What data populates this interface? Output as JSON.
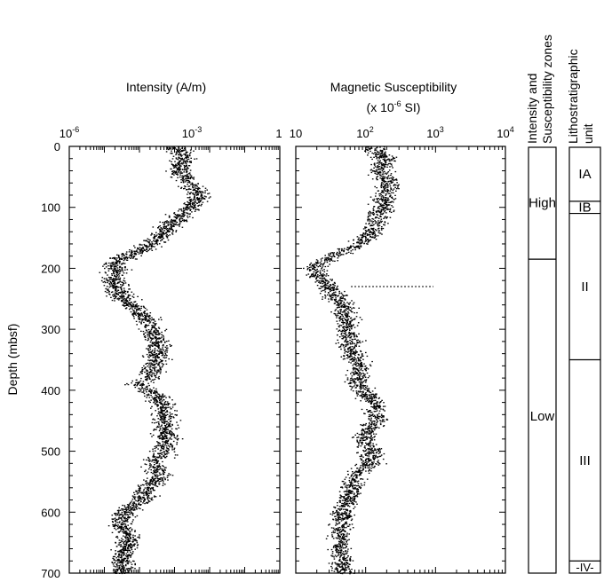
{
  "chart_data": [
    {
      "type": "scatter",
      "title": "Intensity (A/m)",
      "xscale": "log",
      "xlim": [
        1e-06,
        1
      ],
      "xticks": [
        {
          "base": "10",
          "exp": "-6"
        },
        {
          "base": "10",
          "exp": "-3"
        },
        {
          "base": "1",
          "exp": ""
        }
      ],
      "ylabel": "Depth (mbsf)",
      "ylim": [
        0,
        700
      ],
      "yticks": [
        "0",
        "100",
        "200",
        "300",
        "400",
        "500",
        "600",
        "700"
      ],
      "depth": [
        0,
        20,
        40,
        60,
        80,
        100,
        120,
        140,
        160,
        175,
        190,
        210,
        230,
        250,
        260,
        280,
        300,
        320,
        340,
        360,
        380,
        390,
        400,
        420,
        440,
        460,
        480,
        500,
        520,
        540,
        560,
        580,
        600,
        620,
        640,
        660,
        680,
        700
      ],
      "values": [
        0.0013,
        0.0016,
        0.0013,
        0.0025,
        0.005,
        0.0025,
        0.001,
        0.00045,
        0.00022,
        6e-05,
        2e-05,
        1.8e-05,
        2e-05,
        3.5e-05,
        6e-05,
        0.00015,
        0.00022,
        0.0003,
        0.0003,
        0.00025,
        0.00018,
        8e-05,
        0.0002,
        0.00045,
        0.0005,
        0.0005,
        0.00055,
        0.00045,
        0.00025,
        0.0004,
        0.00015,
        0.00012,
        3.5e-05,
        3e-05,
        5e-05,
        4e-05,
        3e-05,
        3e-05
      ]
    },
    {
      "type": "scatter",
      "title": "Magnetic Susceptibility",
      "subtitle": {
        "prefix": "(x 10",
        "exp": "-6",
        "suffix": " SI)"
      },
      "xscale": "log",
      "xlim": [
        10,
        10000
      ],
      "xticks": [
        {
          "base": "10",
          "exp": ""
        },
        {
          "base": "10",
          "exp": "2"
        },
        {
          "base": "10",
          "exp": "3"
        },
        {
          "base": "10",
          "exp": "4"
        }
      ],
      "ylim": [
        0,
        700
      ],
      "depth": [
        0,
        20,
        40,
        60,
        80,
        100,
        120,
        140,
        160,
        175,
        190,
        200,
        210,
        230,
        250,
        260,
        280,
        300,
        320,
        340,
        360,
        380,
        400,
        420,
        440,
        460,
        480,
        500,
        520,
        540,
        560,
        580,
        600,
        620,
        640,
        660,
        680,
        700
      ],
      "values": [
        130,
        180,
        150,
        220,
        180,
        170,
        140,
        120,
        80,
        40,
        22,
        18,
        20,
        30,
        40,
        50,
        50,
        55,
        60,
        65,
        80,
        75,
        90,
        130,
        140,
        120,
        95,
        120,
        110,
        70,
        60,
        55,
        45,
        45,
        42,
        42,
        45,
        45
      ]
    }
  ],
  "zones": {
    "header": [
      "Intensity and",
      "Susceptibility zones"
    ],
    "items": [
      {
        "label": "High",
        "top": 0,
        "bottom": 185
      },
      {
        "label": "Low",
        "top": 185,
        "bottom": 700
      }
    ]
  },
  "units": {
    "header": [
      "Lithostratigraphic",
      "unit"
    ],
    "items": [
      {
        "label": "IA",
        "top": 0,
        "bottom": 90
      },
      {
        "label": "IB",
        "top": 90,
        "bottom": 110
      },
      {
        "label": "II",
        "top": 110,
        "bottom": 350
      },
      {
        "label": "III",
        "top": 350,
        "bottom": 680
      },
      {
        "label": "IV",
        "top": 680,
        "bottom": 700
      }
    ]
  }
}
